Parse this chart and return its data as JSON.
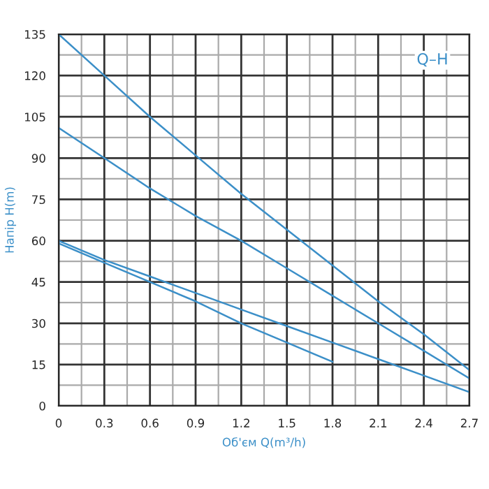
{
  "chart_data": {
    "type": "line",
    "xlabel": "Об'єм Q(m³/h)",
    "ylabel": "Напір H(m)",
    "annotations": [
      "Q–H"
    ],
    "xlim": [
      0,
      2.7
    ],
    "ylim": [
      0,
      135
    ],
    "xticks": [
      0,
      0.3,
      0.6,
      0.9,
      1.2,
      1.5,
      1.8,
      2.1,
      2.4,
      2.7
    ],
    "yticks": [
      0,
      15,
      30,
      45,
      60,
      75,
      90,
      105,
      120,
      135
    ],
    "grid": true,
    "marker": "none",
    "line_style": "solid",
    "series": [
      {
        "color": "#3b8fc8",
        "x": [
          0,
          0.3,
          0.6,
          0.9,
          1.2,
          1.5,
          1.8,
          2.1,
          2.4,
          2.7
        ],
        "values": [
          135,
          120,
          105,
          91,
          77,
          64,
          51,
          38,
          26,
          13
        ]
      },
      {
        "color": "#3b8fc8",
        "x": [
          0,
          0.3,
          0.6,
          0.9,
          1.2,
          1.5,
          1.8,
          2.1,
          2.4,
          2.7
        ],
        "values": [
          101,
          90,
          79,
          69,
          60,
          50,
          40,
          30,
          20,
          10
        ]
      },
      {
        "color": "#3b8fc8",
        "x": [
          0,
          0.3,
          0.6,
          0.9,
          1.2,
          1.5,
          1.8,
          2.1,
          2.4,
          2.7
        ],
        "values": [
          60,
          53,
          47,
          41,
          35,
          29,
          23,
          17,
          11,
          5
        ]
      },
      {
        "color": "#3b8fc8",
        "x": [
          0,
          0.3,
          0.6,
          0.9,
          1.2,
          1.5,
          1.8
        ],
        "values": [
          59,
          52,
          45,
          38,
          30,
          23,
          16
        ]
      }
    ]
  }
}
